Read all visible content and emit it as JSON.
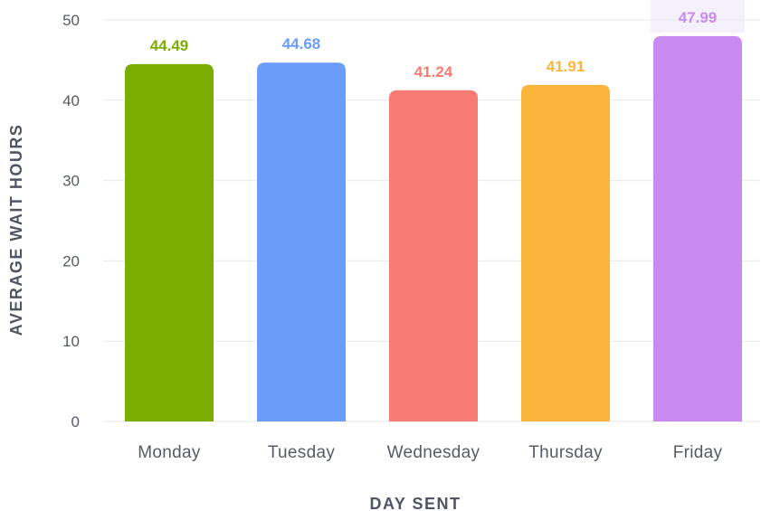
{
  "chart_data": {
    "type": "bar",
    "title": "",
    "xlabel": "DAY SENT",
    "ylabel": "AVERAGE WAIT HOURS",
    "categories": [
      "Monday",
      "Tuesday",
      "Wednesday",
      "Thursday",
      "Friday"
    ],
    "values": [
      44.49,
      44.68,
      41.24,
      41.91,
      47.99
    ],
    "value_labels": [
      "44.49",
      "44.68",
      "41.24",
      "41.91",
      "47.99"
    ],
    "colors": [
      "#7aad00",
      "#6a9cf9",
      "#f77b72",
      "#fbb53c",
      "#c88af0"
    ],
    "ylim": [
      0,
      50
    ],
    "yticks": [
      0,
      10,
      20,
      30,
      40,
      50
    ],
    "grid": true,
    "highlighted_category": "Friday",
    "highlight_color": "#f5f1fb"
  }
}
